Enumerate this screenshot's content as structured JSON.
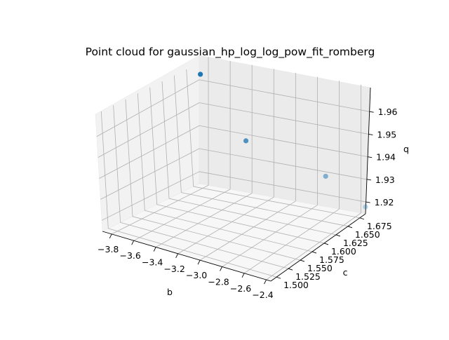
{
  "chart_data": {
    "type": "scatter",
    "projection": "3d",
    "title": "Point cloud for gaussian_hp_log_log_pow_fit_romberg",
    "xlabel": "b",
    "ylabel": "c",
    "zlabel": "q",
    "x_ticks": [
      "−3.8",
      "−3.6",
      "−3.4",
      "−3.2",
      "−3.0",
      "−2.8",
      "−2.6",
      "−2.4"
    ],
    "y_ticks": [
      "1.500",
      "1.525",
      "1.550",
      "1.575",
      "1.600",
      "1.625",
      "1.650",
      "1.675"
    ],
    "z_ticks": [
      "1.92",
      "1.93",
      "1.94",
      "1.95",
      "1.96"
    ],
    "xlim": [
      -3.86,
      -2.4
    ],
    "ylim": [
      1.49,
      1.69
    ],
    "zlim": [
      1.915,
      1.97
    ],
    "grid": true,
    "marker_color": "#1f77b4",
    "points": [
      {
        "x": -3.85,
        "y": 1.69,
        "z": 1.962
      },
      {
        "x": -3.45,
        "y": 1.69,
        "z": 1.937
      },
      {
        "x": -2.75,
        "y": 1.69,
        "z": 1.928
      },
      {
        "x": -2.4,
        "y": 1.69,
        "z": 1.918
      }
    ]
  }
}
